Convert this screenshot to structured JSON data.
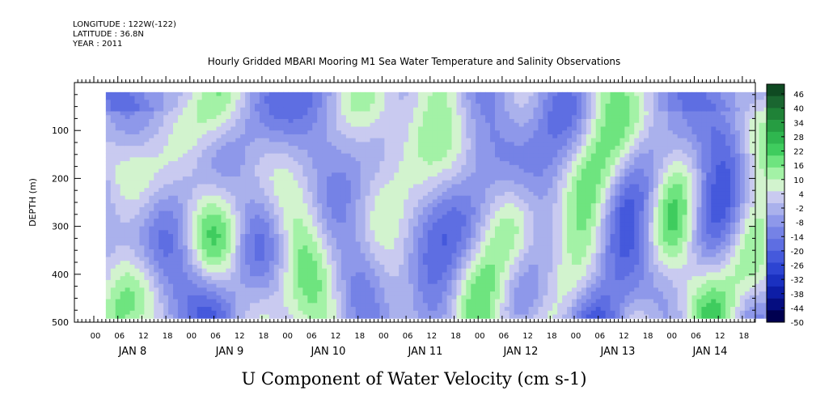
{
  "header": {
    "longitude": "LONGITUDE : 122W(-122)",
    "latitude": "LATITUDE : 36.8N",
    "year": "YEAR : 2011"
  },
  "chart_data": {
    "type": "heatmap",
    "title": "Hourly Gridded MBARI Mooring M1 Sea Water Temperature and Salinity Observations",
    "xlabel": "U Component of Water Velocity (cm s-1)",
    "ylabel": "DEPTH (m)",
    "y_axis": {
      "range": [
        500,
        0
      ],
      "inverted": true,
      "ticks": [
        100,
        200,
        300,
        400,
        500
      ],
      "tick_labels": [
        "100",
        "200",
        "300",
        "400",
        "500"
      ]
    },
    "x_axis": {
      "hour_ticks": [
        "00",
        "06",
        "12",
        "18",
        "00",
        "06",
        "12",
        "18",
        "00",
        "06",
        "12",
        "18",
        "00",
        "06",
        "12",
        "18",
        "00",
        "06",
        "12",
        "18",
        "00",
        "06",
        "12",
        "18",
        "00",
        "06",
        "12",
        "18"
      ],
      "day_labels": [
        "JAN  8",
        "JAN  9",
        "JAN 10",
        "JAN 11",
        "JAN 12",
        "JAN 13",
        "JAN 14"
      ],
      "data_start_hour": 3,
      "data_end_hour": 168
    },
    "data_depth_range": [
      20,
      485
    ],
    "colorbar": {
      "labels": [
        "46",
        "40",
        "34",
        "28",
        "22",
        "16",
        "10",
        "4",
        "-2",
        "-8",
        "-14",
        "-20",
        "-26",
        "-32",
        "-38",
        "-44",
        "-50"
      ],
      "colors": [
        "#0f4a22",
        "#1a6630",
        "#1f8237",
        "#269d42",
        "#2fb64f",
        "#3fcc5e",
        "#6ee47f",
        "#a3f2a6",
        "#d2f3ce",
        "#c9caf0",
        "#aab1ec",
        "#8e98ea",
        "#7582e6",
        "#5e6ee2",
        "#4559dc",
        "#2d44d2",
        "#1a30c0",
        "#0d1da6",
        "#050d80",
        "#000050"
      ],
      "range": [
        -50,
        52
      ]
    },
    "values": "Velocity field (cm s-1) over depth 20-485 m and time, mostly between -26 and +28, depicted as filled contours"
  }
}
